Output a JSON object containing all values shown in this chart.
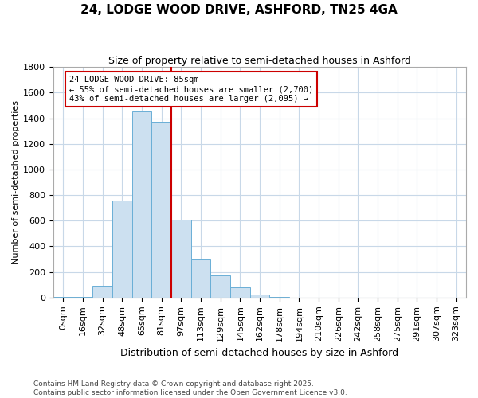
{
  "title_line1": "24, LODGE WOOD DRIVE, ASHFORD, TN25 4GA",
  "title_line2": "Size of property relative to semi-detached houses in Ashford",
  "bar_labels": [
    "0sqm",
    "16sqm",
    "32sqm",
    "48sqm",
    "65sqm",
    "81sqm",
    "97sqm",
    "113sqm",
    "129sqm",
    "145sqm",
    "162sqm",
    "178sqm",
    "194sqm",
    "210sqm",
    "226sqm",
    "242sqm",
    "258sqm",
    "275sqm",
    "291sqm",
    "307sqm",
    "323sqm"
  ],
  "bar_values": [
    5,
    5,
    90,
    760,
    1450,
    1370,
    610,
    300,
    170,
    80,
    25,
    5,
    0,
    0,
    0,
    0,
    0,
    0,
    0,
    0,
    0
  ],
  "bar_color": "#cce0f0",
  "bar_edge_color": "#6aafd6",
  "grid_color": "#c8d8e8",
  "ylabel": "Number of semi-detached properties",
  "xlabel": "Distribution of semi-detached houses by size in Ashford",
  "ylim": [
    0,
    1800
  ],
  "yticks": [
    0,
    200,
    400,
    600,
    800,
    1000,
    1200,
    1400,
    1600,
    1800
  ],
  "property_line_x": 5.5,
  "property_line_color": "#cc0000",
  "annotation_title": "24 LODGE WOOD DRIVE: 85sqm",
  "annotation_line1": "← 55% of semi-detached houses are smaller (2,700)",
  "annotation_line2": "43% of semi-detached houses are larger (2,095) →",
  "annotation_box_facecolor": "#ffffff",
  "annotation_box_edgecolor": "#cc0000",
  "footer_line1": "Contains HM Land Registry data © Crown copyright and database right 2025.",
  "footer_line2": "Contains public sector information licensed under the Open Government Licence v3.0.",
  "background_color": "#ffffff",
  "title1_fontsize": 11,
  "title2_fontsize": 9,
  "ylabel_fontsize": 8,
  "xlabel_fontsize": 9,
  "tick_fontsize": 8,
  "annot_fontsize": 7.5,
  "footer_fontsize": 6.5
}
